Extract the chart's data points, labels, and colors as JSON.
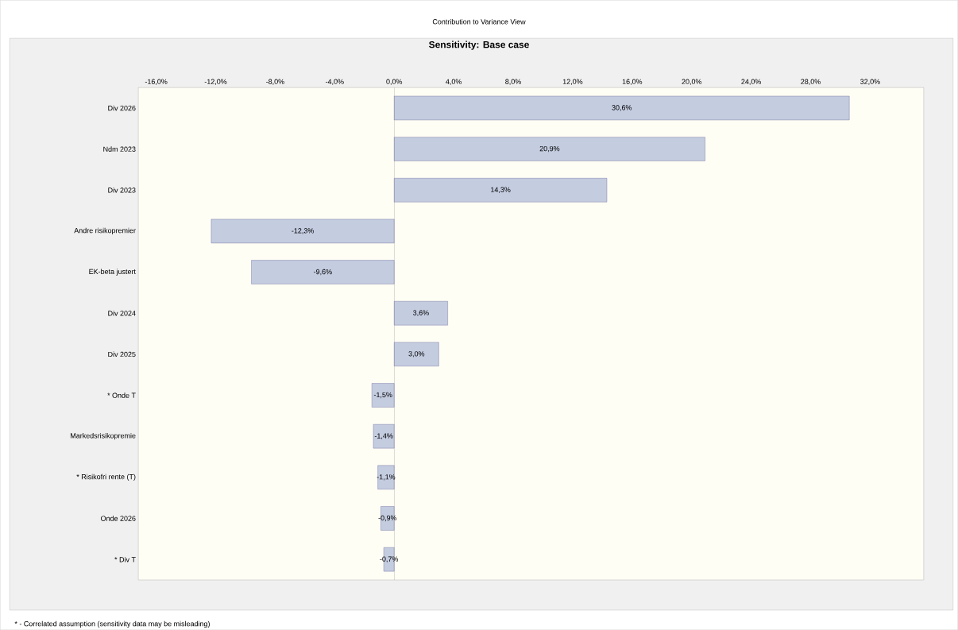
{
  "chart_data": {
    "type": "bar",
    "orientation": "horizontal",
    "title": "Contribution to Variance View",
    "subtitle": "Sensitivity: Base case",
    "categories": [
      "Div 2026",
      "Ndm 2023",
      "Div 2023",
      "Andre risikopremier",
      "EK-beta justert",
      "Div 2024",
      "Div 2025",
      "* Onde T",
      "Markedsrisikopremie",
      "* Risikofri rente (T)",
      "Onde 2026",
      "* Div T"
    ],
    "values": [
      30.6,
      20.9,
      14.3,
      -12.3,
      -9.6,
      3.6,
      3.0,
      -1.5,
      -1.4,
      -1.1,
      -0.9,
      -0.7
    ],
    "value_labels": [
      "30,6%",
      "20,9%",
      "14,3%",
      "-12,3%",
      "-9,6%",
      "3,6%",
      "3,0%",
      "-1,5%",
      "-1,4%",
      "-1,1%",
      "-0,9%",
      "-0,7%"
    ],
    "color": "#c4cce0",
    "xlim": [
      -17.2,
      35.6
    ],
    "xticks": [
      {
        "value": -16,
        "label": "-16,0%"
      },
      {
        "value": -12,
        "label": "-12,0%"
      },
      {
        "value": -8,
        "label": "-8,0%"
      },
      {
        "value": -4,
        "label": "-4,0%"
      },
      {
        "value": 0,
        "label": "0,0%"
      },
      {
        "value": 4,
        "label": "4,0%"
      },
      {
        "value": 8,
        "label": "8,0%"
      },
      {
        "value": 12,
        "label": "12,0%"
      },
      {
        "value": 16,
        "label": "16,0%"
      },
      {
        "value": 20,
        "label": "20,0%"
      },
      {
        "value": 24,
        "label": "24,0%"
      },
      {
        "value": 28,
        "label": "28,0%"
      },
      {
        "value": 32,
        "label": "32,0%"
      }
    ],
    "ref_lines": [
      {
        "axis": "x",
        "value": 0,
        "color": "#707070"
      }
    ],
    "grid": false,
    "annotations": [
      "* - Correlated assumption (sensitivity data may be misleading)"
    ]
  }
}
